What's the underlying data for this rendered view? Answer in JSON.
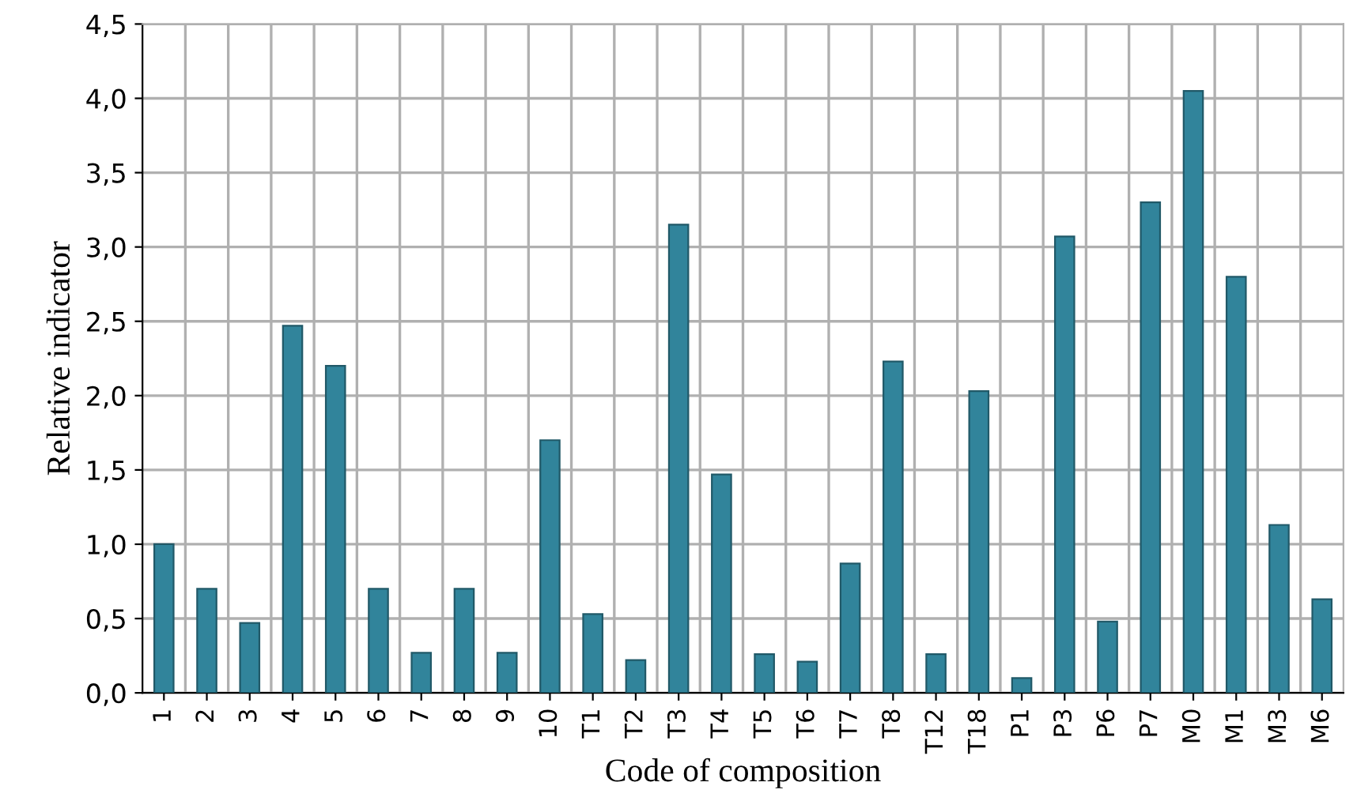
{
  "chart_data": {
    "type": "bar",
    "xlabel": "Code of composition",
    "ylabel": "Relative indicator",
    "categories": [
      "1",
      "2",
      "3",
      "4",
      "5",
      "6",
      "7",
      "8",
      "9",
      "10",
      "T1",
      "T2",
      "T3",
      "T4",
      "T5",
      "T6",
      "T7",
      "T8",
      "T12",
      "T18",
      "P1",
      "P3",
      "P6",
      "P7",
      "M0",
      "M1",
      "M3",
      "M6"
    ],
    "values": [
      1.0,
      0.7,
      0.47,
      2.47,
      2.2,
      0.7,
      0.27,
      0.7,
      0.27,
      1.7,
      0.53,
      0.22,
      3.15,
      1.47,
      0.26,
      0.21,
      0.87,
      2.23,
      0.26,
      2.03,
      0.1,
      3.07,
      0.48,
      3.3,
      4.05,
      2.8,
      1.13,
      0.63
    ],
    "color": "#31849b",
    "ylim": [
      0,
      4.5
    ],
    "yticks": [
      {
        "value": 0,
        "label": "0,0"
      },
      {
        "value": 0.5,
        "label": "0,5"
      },
      {
        "value": 1,
        "label": "1,0"
      },
      {
        "value": 1.5,
        "label": "1,5"
      },
      {
        "value": 2,
        "label": "2,0"
      },
      {
        "value": 2.5,
        "label": "2,5"
      },
      {
        "value": 3,
        "label": "3,0"
      },
      {
        "value": 3.5,
        "label": "3,5"
      },
      {
        "value": 4,
        "label": "4,0"
      },
      {
        "value": 4.5,
        "label": "4,5"
      }
    ],
    "grid": true
  }
}
